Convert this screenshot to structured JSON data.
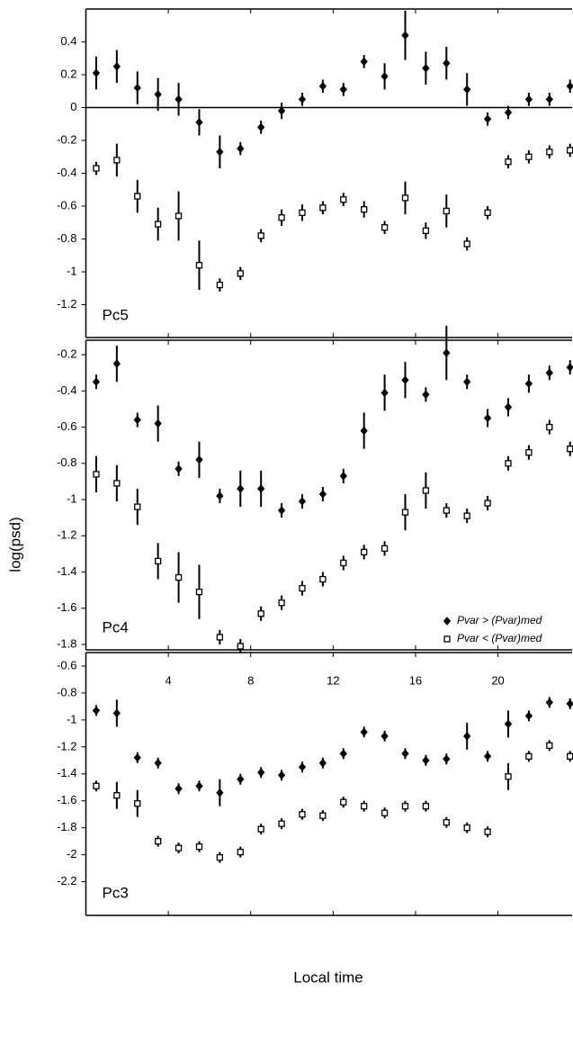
{
  "ylabel": "log(psd)",
  "xlabel": "Local time",
  "chart_data": [
    {
      "type": "errorbar",
      "annotation": "Pc5",
      "xlim": [
        0,
        23.6
      ],
      "ylim": [
        -1.4,
        0.6
      ],
      "yticks": [
        0.4,
        0.2,
        0,
        -0.2,
        -0.4,
        -0.6,
        -0.8,
        -1,
        -1.2
      ],
      "xticks": [
        4,
        8,
        12,
        16,
        20
      ],
      "xtick_labels_shown": false,
      "zero_line": true,
      "x": [
        0.5,
        1.5,
        2.5,
        3.5,
        4.5,
        5.5,
        6.5,
        7.5,
        8.5,
        9.5,
        10.5,
        11.5,
        12.5,
        13.5,
        14.5,
        15.5,
        16.5,
        17.5,
        18.5,
        19.5,
        20.5,
        21.5,
        22.5,
        23.5
      ],
      "series": [
        {
          "name": "Pvar > (Pvar)med",
          "color": "#000000",
          "marker": "diamond",
          "filled": true,
          "values": [
            0.21,
            0.25,
            0.12,
            0.08,
            0.05,
            -0.09,
            -0.27,
            -0.25,
            -0.12,
            -0.02,
            0.05,
            0.13,
            0.11,
            0.28,
            0.19,
            0.44,
            0.24,
            0.27,
            0.11,
            -0.07,
            -0.03,
            0.05,
            0.05,
            0.13
          ],
          "errors": [
            0.1,
            0.1,
            0.1,
            0.1,
            0.1,
            0.08,
            0.1,
            0.04,
            0.04,
            0.05,
            0.04,
            0.04,
            0.04,
            0.04,
            0.08,
            0.15,
            0.1,
            0.1,
            0.1,
            0.04,
            0.04,
            0.04,
            0.04,
            0.04
          ]
        },
        {
          "name": "Pvar < (Pvar)med",
          "color": "#000000",
          "marker": "square",
          "filled": false,
          "values": [
            -0.37,
            -0.32,
            -0.54,
            -0.71,
            -0.66,
            -0.96,
            -1.08,
            -1.01,
            -0.78,
            -0.67,
            -0.64,
            -0.61,
            -0.56,
            -0.62,
            -0.73,
            -0.55,
            -0.75,
            -0.63,
            -0.83,
            -0.64,
            -0.33,
            -0.3,
            -0.27,
            -0.26
          ],
          "errors": [
            0.04,
            0.1,
            0.1,
            0.1,
            0.15,
            0.15,
            0.04,
            0.04,
            0.04,
            0.05,
            0.05,
            0.04,
            0.04,
            0.05,
            0.04,
            0.1,
            0.05,
            0.1,
            0.04,
            0.04,
            0.04,
            0.04,
            0.04,
            0.04
          ]
        }
      ]
    },
    {
      "type": "errorbar",
      "annotation": "Pc4",
      "xlim": [
        0,
        23.6
      ],
      "ylim": [
        -1.83,
        -0.12
      ],
      "yticks": [
        -0.2,
        -0.4,
        -0.6,
        -0.8,
        -1,
        -1.2,
        -1.4,
        -1.6,
        -1.8
      ],
      "xticks": [
        4,
        8,
        12,
        16,
        20
      ],
      "xtick_labels_shown": false,
      "legend": "lower right",
      "x": [
        0.5,
        1.5,
        2.5,
        3.5,
        4.5,
        5.5,
        6.5,
        7.5,
        8.5,
        9.5,
        10.5,
        11.5,
        12.5,
        13.5,
        14.5,
        15.5,
        16.5,
        17.5,
        18.5,
        19.5,
        20.5,
        21.5,
        22.5,
        23.5
      ],
      "series": [
        {
          "name": "Pvar > (Pvar)med",
          "color": "#000000",
          "marker": "diamond",
          "filled": true,
          "values": [
            -0.35,
            -0.25,
            -0.56,
            -0.58,
            -0.83,
            -0.78,
            -0.98,
            -0.94,
            -0.94,
            -1.06,
            -1.01,
            -0.97,
            -0.87,
            -0.62,
            -0.41,
            -0.34,
            -0.42,
            -0.19,
            -0.35,
            -0.55,
            -0.49,
            -0.36,
            -0.3,
            -0.27
          ],
          "errors": [
            0.04,
            0.1,
            0.04,
            0.1,
            0.04,
            0.1,
            0.04,
            0.1,
            0.1,
            0.04,
            0.04,
            0.04,
            0.04,
            0.1,
            0.1,
            0.1,
            0.04,
            0.15,
            0.04,
            0.05,
            0.05,
            0.05,
            0.04,
            0.04
          ]
        },
        {
          "name": "Pvar < (Pvar)med",
          "color": "#000000",
          "marker": "square",
          "filled": false,
          "values": [
            -0.86,
            -0.91,
            -1.04,
            -1.34,
            -1.43,
            -1.51,
            -1.76,
            -1.81,
            -1.63,
            -1.57,
            -1.49,
            -1.44,
            -1.35,
            -1.29,
            -1.27,
            -1.07,
            -0.95,
            -1.06,
            -1.09,
            -1.02,
            -0.8,
            -0.74,
            -0.6,
            -0.72
          ],
          "errors": [
            0.1,
            0.1,
            0.1,
            0.1,
            0.14,
            0.15,
            0.04,
            0.04,
            0.04,
            0.04,
            0.04,
            0.04,
            0.04,
            0.04,
            0.04,
            0.1,
            0.1,
            0.04,
            0.04,
            0.04,
            0.04,
            0.04,
            0.04,
            0.04
          ]
        }
      ]
    },
    {
      "type": "errorbar",
      "annotation": "Pc3",
      "xlim": [
        0,
        23.6
      ],
      "ylim": [
        -2.45,
        -0.5
      ],
      "yticks": [
        -0.6,
        -0.8,
        -1,
        -1.2,
        -1.4,
        -1.6,
        -1.8,
        -2,
        -2.2
      ],
      "xticks": [
        4,
        8,
        12,
        16,
        20
      ],
      "xtick_labels_shown": true,
      "x": [
        0.5,
        1.5,
        2.5,
        3.5,
        4.5,
        5.5,
        6.5,
        7.5,
        8.5,
        9.5,
        10.5,
        11.5,
        12.5,
        13.5,
        14.5,
        15.5,
        16.5,
        17.5,
        18.5,
        19.5,
        20.5,
        21.5,
        22.5,
        23.5
      ],
      "series": [
        {
          "name": "Pvar > (Pvar)med",
          "color": "#000000",
          "marker": "diamond",
          "filled": true,
          "values": [
            -0.93,
            -0.95,
            -1.28,
            -1.32,
            -1.51,
            -1.49,
            -1.54,
            -1.44,
            -1.39,
            -1.41,
            -1.35,
            -1.32,
            -1.25,
            -1.09,
            -1.12,
            -1.25,
            -1.3,
            -1.29,
            -1.12,
            -1.27,
            -1.03,
            -0.97,
            -0.87,
            -0.88
          ],
          "errors": [
            0.04,
            0.1,
            0.04,
            0.04,
            0.04,
            0.04,
            0.1,
            0.04,
            0.04,
            0.04,
            0.04,
            0.04,
            0.04,
            0.04,
            0.04,
            0.04,
            0.04,
            0.04,
            0.1,
            0.04,
            0.1,
            0.04,
            0.04,
            0.04
          ]
        },
        {
          "name": "Pvar < (Pvar)med",
          "color": "#000000",
          "marker": "square",
          "filled": false,
          "values": [
            -1.49,
            -1.56,
            -1.62,
            -1.9,
            -1.95,
            -1.94,
            -2.02,
            -1.98,
            -1.81,
            -1.77,
            -1.7,
            -1.71,
            -1.61,
            -1.64,
            -1.69,
            -1.64,
            -1.64,
            -1.76,
            -1.8,
            -1.83,
            -1.42,
            -1.27,
            -1.19,
            -1.27
          ],
          "errors": [
            0.04,
            0.1,
            0.1,
            0.04,
            0.04,
            0.04,
            0.04,
            0.04,
            0.04,
            0.04,
            0.04,
            0.04,
            0.04,
            0.04,
            0.04,
            0.04,
            0.04,
            0.04,
            0.04,
            0.04,
            0.1,
            0.04,
            0.04,
            0.04
          ]
        }
      ]
    }
  ]
}
